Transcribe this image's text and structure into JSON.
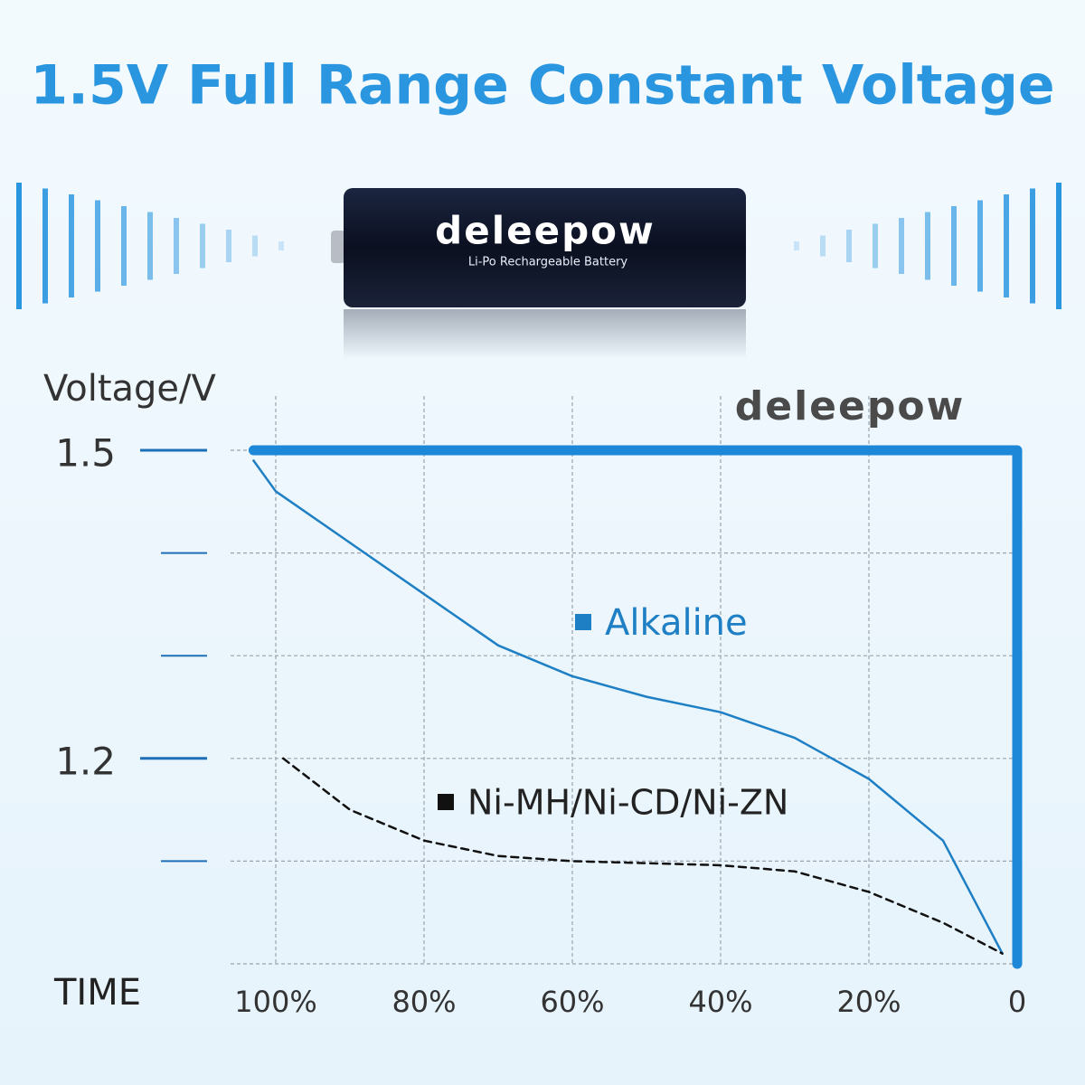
{
  "chart_data": {
    "type": "line",
    "title": "1.5V Full Range Constant Voltage",
    "brand": "deleepow",
    "product_label": "Li-Po Rechargeable Battery",
    "y_label": "Voltage/V",
    "x_label": "TIME",
    "xlim": [
      105,
      0
    ],
    "xticks": [
      {
        "value": 100,
        "label": "100%"
      },
      {
        "value": 80,
        "label": "80%"
      },
      {
        "value": 60,
        "label": "60%"
      },
      {
        "value": 40,
        "label": "40%"
      },
      {
        "value": 20,
        "label": "20%"
      },
      0
    ],
    "ylim": [
      1.0,
      1.5
    ],
    "yticks": [
      1.5,
      1.2
    ],
    "minor_yticks": [
      1.4,
      1.3,
      1.1
    ],
    "grid": true,
    "series": [
      {
        "color": "#1e88d8",
        "width": 11,
        "x": [
          103,
          0,
          0
        ],
        "values": [
          1.5,
          1.5,
          1.0
        ]
      },
      {
        "name": "Alkaline",
        "color": "#1e7fc4",
        "width": 2.5,
        "x": [
          103,
          100,
          90,
          80,
          70,
          60,
          50,
          40,
          30,
          20,
          10,
          2
        ],
        "values": [
          1.49,
          1.46,
          1.41,
          1.36,
          1.31,
          1.28,
          1.26,
          1.245,
          1.22,
          1.18,
          1.12,
          1.01
        ]
      },
      {
        "name": "Ni-MH/Ni-CD/Ni-ZN",
        "color": "#111111",
        "width": 2.5,
        "dashed": true,
        "x": [
          99,
          90,
          80,
          70,
          60,
          50,
          40,
          30,
          20,
          10,
          2
        ],
        "values": [
          1.2,
          1.15,
          1.12,
          1.105,
          1.1,
          1.098,
          1.096,
          1.09,
          1.07,
          1.04,
          1.01
        ]
      }
    ]
  }
}
